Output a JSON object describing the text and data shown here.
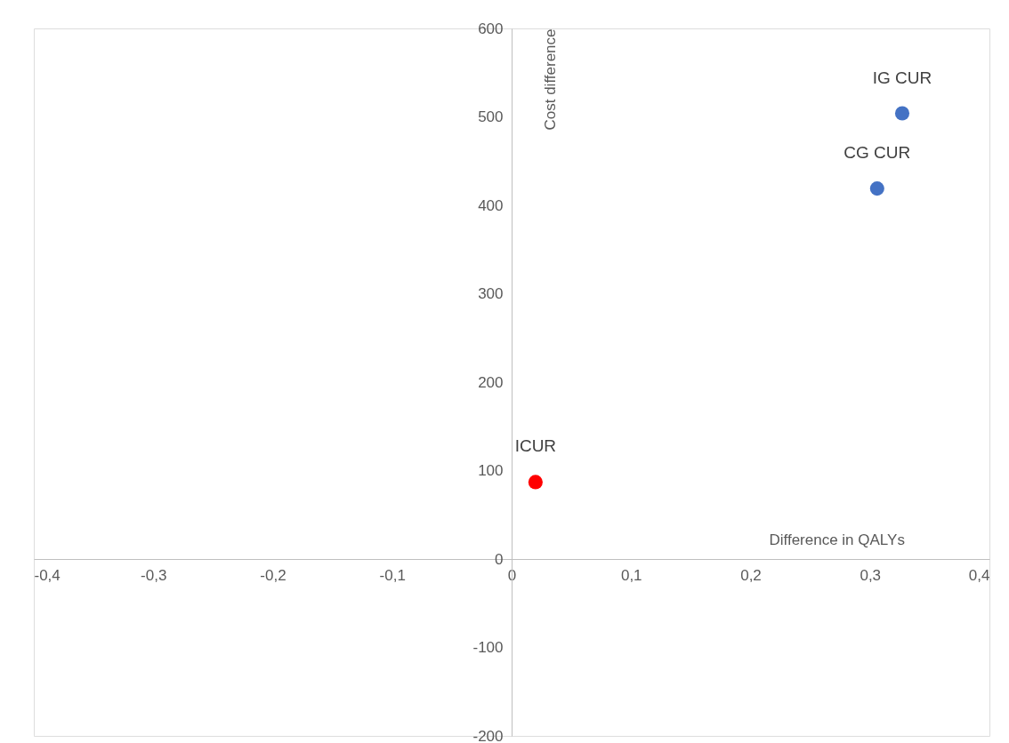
{
  "chart_data": {
    "type": "scatter",
    "xlabel": "Difference in QALYs",
    "ylabel": "Cost difference",
    "series": [
      {
        "name": "IG CUR",
        "color": "#4472c4",
        "x": [
          0.327
        ],
        "values": [
          504
        ]
      },
      {
        "name": "CG CUR",
        "color": "#4472c4",
        "x": [
          0.306
        ],
        "values": [
          419
        ]
      },
      {
        "name": "ICUR",
        "color": "#ff0000",
        "x": [
          0.02
        ],
        "values": [
          87
        ]
      }
    ],
    "xlim": [
      -0.4,
      0.4
    ],
    "xticks": [
      {
        "value": -0.4,
        "label": "-0,4"
      },
      {
        "value": -0.3,
        "label": "-0,3"
      },
      {
        "value": -0.2,
        "label": "-0,2"
      },
      {
        "value": -0.1,
        "label": "-0,1"
      },
      0,
      {
        "value": 0.1,
        "label": "0,1"
      },
      {
        "value": 0.2,
        "label": "0,2"
      },
      {
        "value": 0.3,
        "label": "0,3"
      },
      {
        "value": 0.4,
        "label": "0,4"
      }
    ],
    "ylim": [
      -200,
      600
    ],
    "yticks": [
      -200,
      -100,
      0,
      100,
      200,
      300,
      400,
      500,
      600
    ],
    "grid": false,
    "legend": false,
    "marker": "circle"
  }
}
